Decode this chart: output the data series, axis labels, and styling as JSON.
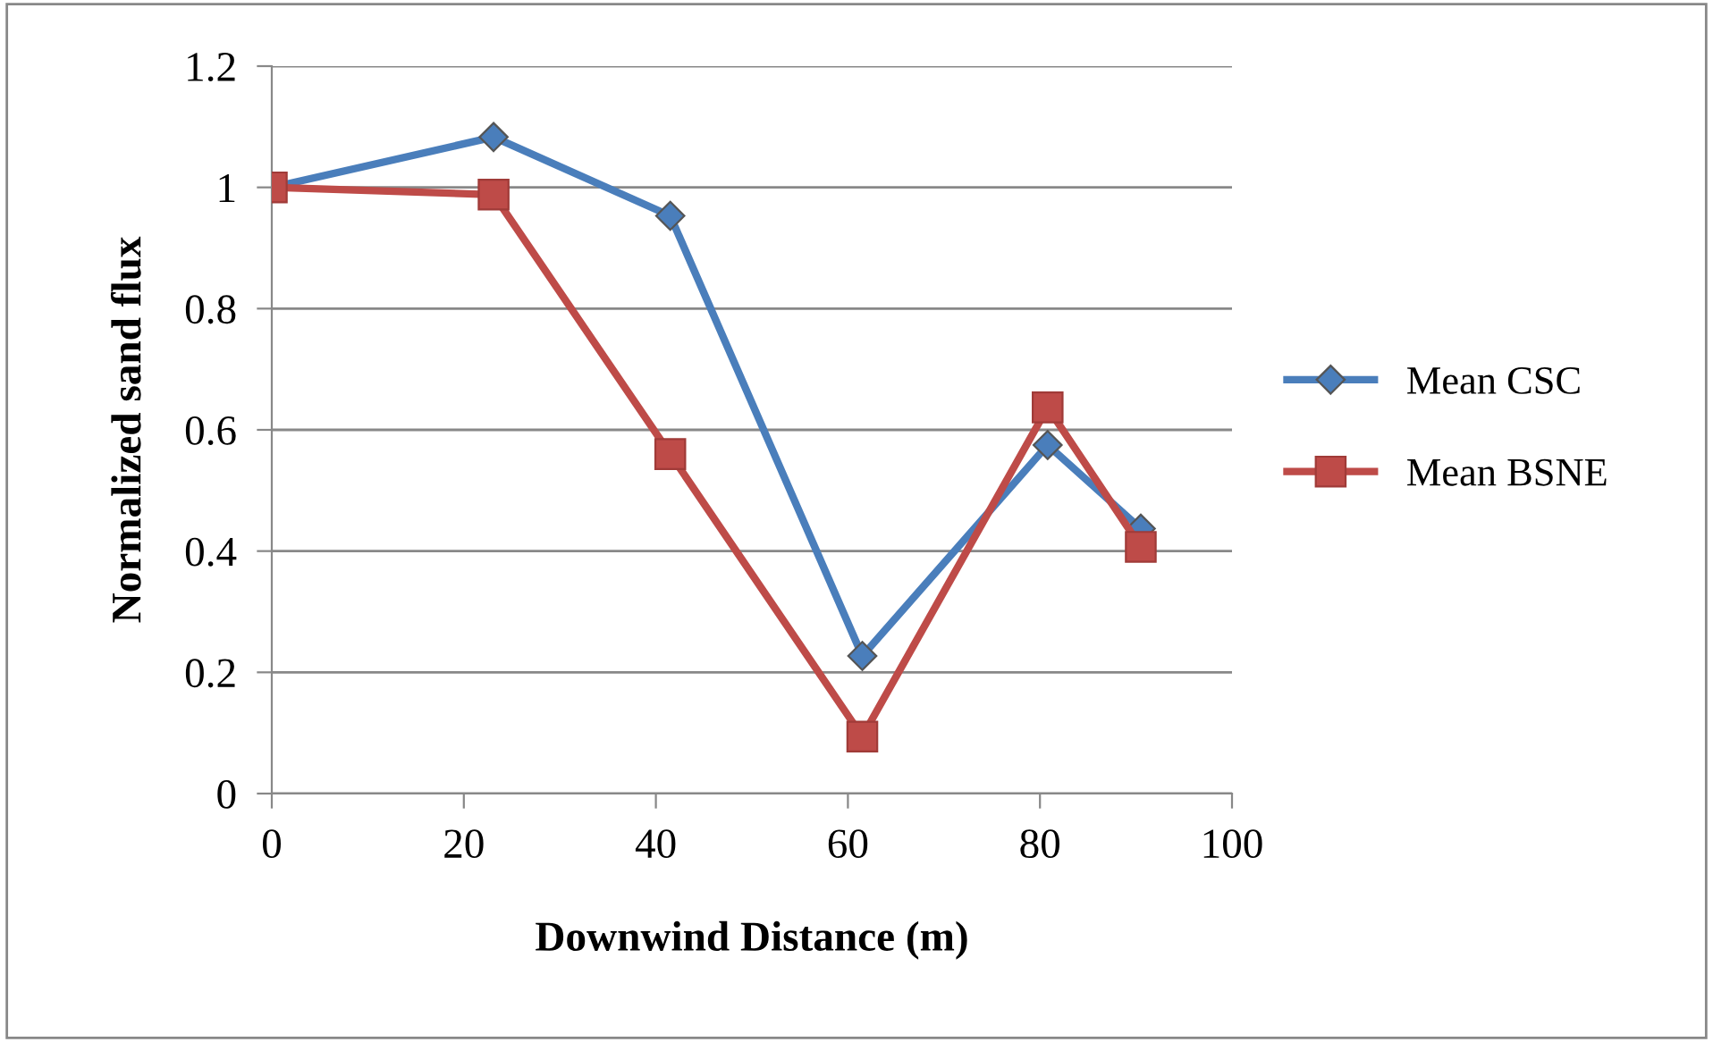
{
  "chart_data": {
    "type": "line",
    "xlabel": "Downwind Distance (m)",
    "ylabel": "Normalized sand flux",
    "x": [
      0,
      23.1,
      41.5,
      61.5,
      80.8,
      90.5
    ],
    "series": [
      {
        "name": "Mean CSC",
        "color": "#4a7ebb",
        "marker": "diamond",
        "values": [
          1.0,
          1.083,
          0.953,
          0.227,
          0.575,
          0.437
        ]
      },
      {
        "name": "Mean BSNE",
        "color": "#be4b48",
        "marker": "square",
        "values": [
          1.0,
          0.988,
          0.56,
          0.094,
          0.637,
          0.407
        ]
      }
    ],
    "xlim": [
      0,
      100
    ],
    "xticks": [
      0,
      20,
      40,
      60,
      80,
      100
    ],
    "ylim": [
      0,
      1.2
    ],
    "yticks": [
      0,
      0.2,
      0.4,
      0.6,
      0.8,
      1,
      1.2
    ],
    "grid": "y",
    "legend": "right"
  }
}
